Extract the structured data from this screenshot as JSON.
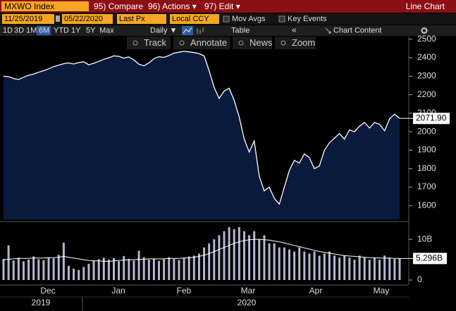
{
  "toolbar": {
    "ticker": "MXWO Index",
    "menu": [
      "95) Compare",
      "96) Actions ▾",
      "97) Edit ▾"
    ],
    "view": "Line Chart"
  },
  "options": {
    "start": "11/25/2019",
    "end": "05/22/2020",
    "field": "Last Px",
    "currency": "Local CCY",
    "checks": [
      "Mov Avgs",
      "Key Events"
    ]
  },
  "ranges": {
    "buttons": [
      "1D",
      "3D",
      "1M",
      "6M",
      "YTD",
      "1Y",
      "5Y",
      "Max"
    ],
    "selected": 3,
    "frequency": "Daily ▼",
    "table": "Table",
    "collapse": "«",
    "content": "Chart Content"
  },
  "tools": [
    "Track",
    "Annotate",
    "News",
    "Zoom"
  ],
  "time_axis": {
    "months": [
      "Dec",
      "Jan",
      "Feb",
      "Mar",
      "Apr",
      "May"
    ],
    "years": [
      "2019",
      "2020"
    ]
  },
  "chart_data": [
    {
      "type": "area",
      "color": "#0a1a3d",
      "line_color": "#ffffff",
      "values": [
        2300,
        2298,
        2288,
        2282,
        2295,
        2305,
        2312,
        2322,
        2330,
        2340,
        2352,
        2360,
        2368,
        2372,
        2366,
        2374,
        2378,
        2362,
        2370,
        2380,
        2392,
        2400,
        2410,
        2408,
        2398,
        2404,
        2388,
        2365,
        2356,
        2372,
        2395,
        2405,
        2402,
        2412,
        2425,
        2430,
        2435,
        2432,
        2428,
        2422,
        2410,
        2330,
        2240,
        2180,
        2220,
        2235,
        2170,
        2080,
        1960,
        1890,
        1950,
        1760,
        1680,
        1700,
        1640,
        1608,
        1700,
        1790,
        1845,
        1830,
        1880,
        1860,
        1800,
        1815,
        1900,
        1940,
        1965,
        1990,
        1960,
        2010,
        2000,
        2030,
        2050,
        2020,
        2050,
        2040,
        2005,
        2070,
        2095,
        2071.9
      ],
      "last_label": "2071.90",
      "ylim": [
        1525,
        2522
      ],
      "yticks": [
        1600,
        1700,
        1800,
        1900,
        2000,
        2100,
        2200,
        2300,
        2400,
        2500
      ]
    },
    {
      "type": "bar",
      "color": "#b4b6d2",
      "values": [
        5.2,
        8.5,
        4.8,
        5.5,
        4.6,
        5.0,
        5.8,
        5.1,
        4.9,
        5.6,
        5.3,
        6.2,
        9.2,
        3.5,
        2.8,
        2.5,
        3.2,
        4.0,
        4.8,
        5.1,
        5.5,
        5.0,
        5.4,
        4.6,
        5.9,
        5.2,
        4.8,
        7.2,
        5.6,
        5.0,
        5.3,
        4.7,
        5.1,
        5.6,
        5.2,
        4.9,
        5.5,
        5.8,
        6.0,
        6.5,
        8,
        9,
        10,
        11,
        12,
        13,
        12.5,
        13,
        12,
        11,
        12,
        10,
        11,
        9,
        9,
        8,
        8,
        7.5,
        7,
        8,
        7,
        6.5,
        7,
        6,
        6.5,
        7,
        6,
        5.5,
        6,
        5.5,
        5,
        6,
        5.5,
        5,
        5.5,
        5,
        6,
        5.5,
        5.2,
        5.296
      ],
      "line_color": "#ffffff",
      "line_values": [
        5.0,
        5.1,
        5.2,
        5.3,
        5.3,
        5.3,
        5.4,
        5.4,
        5.4,
        5.5,
        5.5,
        5.6,
        5.8,
        5.6,
        5.4,
        5.2,
        5.0,
        4.8,
        4.7,
        4.7,
        4.6,
        4.6,
        4.7,
        4.8,
        4.9,
        5.0,
        5.0,
        5.1,
        5.1,
        5.2,
        5.2,
        5.2,
        5.2,
        5.3,
        5.3,
        5.3,
        5.4,
        5.5,
        5.6,
        5.8,
        6.1,
        6.5,
        7.0,
        7.5,
        8.0,
        8.5,
        9.0,
        9.4,
        9.7,
        9.9,
        10.0,
        10.0,
        9.9,
        9.8,
        9.6,
        9.4,
        9.1,
        8.8,
        8.5,
        8.2,
        7.9,
        7.6,
        7.3,
        7.0,
        6.8,
        6.6,
        6.4,
        6.2,
        6.0,
        5.9,
        5.8,
        5.7,
        5.6,
        5.5,
        5.5,
        5.4,
        5.4,
        5.4,
        5.3,
        5.3
      ],
      "last_label": "5.296B",
      "ylim": [
        0,
        14
      ],
      "yticks": [
        0,
        {
          "value": 10,
          "label": "10B"
        }
      ]
    }
  ]
}
